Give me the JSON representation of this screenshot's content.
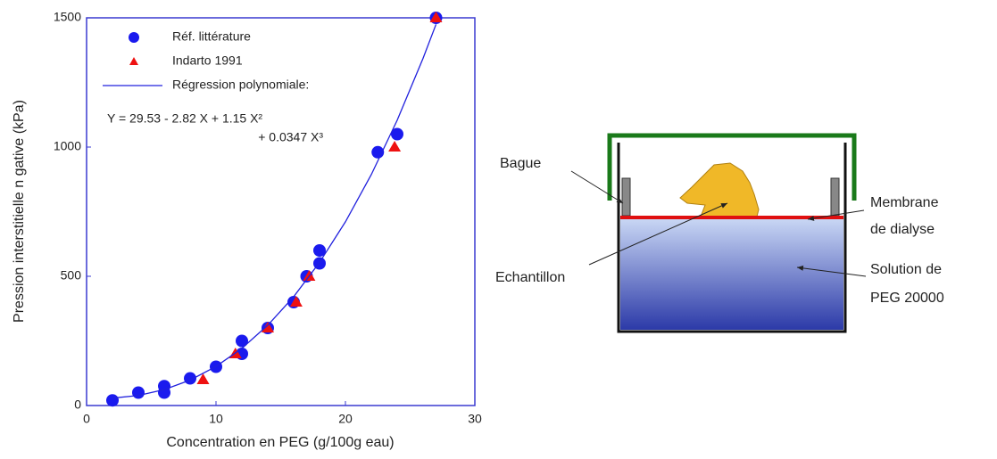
{
  "chart_data": {
    "type": "scatter",
    "xlabel": "Concentration en PEG (g/100g eau)",
    "ylabel": "Pression interstitielle n gative (kPa)",
    "xlim": [
      0,
      30
    ],
    "ylim": [
      0,
      1500
    ],
    "xticks": [
      0,
      10,
      20,
      30
    ],
    "yticks": [
      0,
      500,
      1000,
      1500
    ],
    "grid": false,
    "axis_color": "#3a3ad0",
    "series": [
      {
        "name": "Réf. littérature",
        "marker": "circle",
        "color": "#1a1aee",
        "x": [
          2,
          4,
          6,
          6,
          8,
          10,
          12,
          12,
          14,
          16,
          17,
          18,
          18,
          22.5,
          24,
          27
        ],
        "values": [
          20,
          50,
          75,
          50,
          105,
          150,
          250,
          200,
          300,
          400,
          500,
          600,
          550,
          980,
          1050,
          1500
        ]
      },
      {
        "name": "Indarto 1991",
        "marker": "triangle",
        "color": "#ee1111",
        "x": [
          9,
          11.5,
          14,
          16.2,
          17.2,
          23.8,
          27
        ],
        "values": [
          100,
          200,
          300,
          400,
          500,
          1000,
          1500
        ]
      },
      {
        "name": "Régression polynomiale:",
        "marker": "line",
        "color": "#2020dd",
        "x": [
          2,
          4,
          6,
          8,
          10,
          12,
          14,
          16,
          18,
          20,
          22,
          24,
          26,
          27
        ],
        "values": [
          28.8,
          38.9,
          61.5,
          98.3,
          151.0,
          221.3,
          310.7,
          420.9,
          553.7,
          710.7,
          893.6,
          1103.9,
          1343.5,
          1474.8
        ]
      }
    ],
    "annotations": [
      "Y = 29.53 - 2.82 X + 1.15 X²",
      "+ 0.0347 X³"
    ]
  },
  "diagram": {
    "bague": "Bague",
    "membrane": [
      "Membrane",
      "de dialyse"
    ],
    "echantillon": "Echantillon",
    "solution": [
      "Solution de",
      "PEG 20000"
    ]
  }
}
